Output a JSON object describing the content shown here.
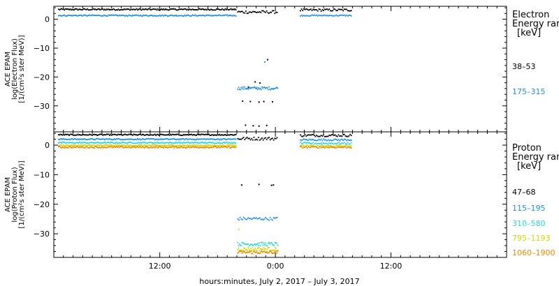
{
  "chart_data": [
    {
      "type": "scatter",
      "panel": "electron",
      "ylabel_lines": [
        "ACE EPAM",
        "log(Electron Flux)",
        "[1/(cm²s ster MeV)]"
      ],
      "ylim": [
        -39,
        4.5
      ],
      "yticks": [
        0,
        -10,
        -20,
        -30
      ],
      "ytick_labels": [
        "0",
        "−10",
        "−20",
        "−30"
      ],
      "legend": {
        "title_lines": [
          "Electron",
          "Energy ran",
          "[keV]"
        ],
        "entries": [
          {
            "label": "38–53",
            "color": "#000000"
          },
          {
            "label": "175–315",
            "color": "#1e90e8"
          }
        ]
      },
      "series": [
        {
          "name": "38–53",
          "color": "#000000",
          "segments": [
            {
              "x_range": [
                1.5,
                20.0
              ],
              "y": 3.4,
              "jitter": 0.25,
              "step": 0.1
            },
            {
              "x_range": [
                20.1,
                24.25
              ],
              "y": 2.5,
              "jitter": 0.5,
              "step": 0.12
            },
            {
              "x_range": [
                26.6,
                32.0
              ],
              "y": 3.2,
              "jitter": 0.4,
              "step": 0.12
            }
          ],
          "points": [
            [
              21.2,
              -23.5
            ],
            [
              22.0,
              -24.0
            ],
            [
              23.2,
              -14.0
            ],
            [
              21.9,
              -21.7
            ],
            [
              22.4,
              -22.1
            ],
            [
              20.6,
              -28.4
            ],
            [
              21.4,
              -28.5
            ],
            [
              22.3,
              -28.7
            ],
            [
              22.8,
              -28.5
            ],
            [
              23.7,
              -28.6
            ],
            [
              20.9,
              -36.7
            ],
            [
              21.7,
              -36.9
            ],
            [
              22.3,
              -37.0
            ],
            [
              23.1,
              -36.8
            ]
          ]
        },
        {
          "name": "175–315",
          "color": "#1e90e8",
          "segments": [
            {
              "x_range": [
                1.5,
                20.0
              ],
              "y": 1.3,
              "jitter": 0.2,
              "step": 0.1
            },
            {
              "x_range": [
                20.1,
                24.25
              ],
              "y": -23.9,
              "jitter": 0.5,
              "step": 0.09
            },
            {
              "x_range": [
                26.6,
                32.0
              ],
              "y": 1.3,
              "jitter": 0.2,
              "step": 0.12
            }
          ],
          "points": [
            [
              22.9,
              -14.8
            ]
          ]
        }
      ]
    },
    {
      "type": "scatter",
      "panel": "proton",
      "ylabel_lines": [
        "ACE EPAM",
        "log(Proton Flux)",
        "[1/(cm²s ster MeV)]"
      ],
      "ylim": [
        -38,
        4.5
      ],
      "yticks": [
        0,
        -10,
        -20,
        -30
      ],
      "ytick_labels": [
        "0",
        "−10",
        "−20",
        "−30"
      ],
      "legend": {
        "title_lines": [
          "Proton",
          "Energy ran",
          "[keV]"
        ],
        "entries": [
          {
            "label": "47–68",
            "color": "#000000"
          },
          {
            "label": "115–195",
            "color": "#1e90e8"
          },
          {
            "label": "310–580",
            "color": "#2cd6d6"
          },
          {
            "label": "795–1193",
            "color": "#d6d600"
          },
          {
            "label": "1060–1900",
            "color": "#e88a00"
          }
        ]
      },
      "series": [
        {
          "name": "47–68",
          "color": "#000000",
          "segments": [
            {
              "x_range": [
                1.5,
                20.0
              ],
              "y": 3.5,
              "jitter": 0.2,
              "step": 0.1
            },
            {
              "x_range": [
                20.1,
                24.25
              ],
              "y": 2.2,
              "jitter": 0.5,
              "step": 0.12
            },
            {
              "x_range": [
                26.6,
                32.0
              ],
              "y": 3.3,
              "jitter": 0.4,
              "step": 0.12
            }
          ],
          "points": [
            [
              20.5,
              -13.5
            ],
            [
              22.3,
              -13.3
            ],
            [
              23.6,
              -13.6
            ],
            [
              23.8,
              -13.5
            ]
          ]
        },
        {
          "name": "115–195",
          "color": "#1e90e8",
          "segments": [
            {
              "x_range": [
                1.5,
                20.0
              ],
              "y": 2.0,
              "jitter": 0.2,
              "step": 0.1
            },
            {
              "x_range": [
                20.1,
                24.25
              ],
              "y": -24.9,
              "jitter": 0.5,
              "step": 0.12
            },
            {
              "x_range": [
                26.6,
                32.0
              ],
              "y": 1.8,
              "jitter": 0.3,
              "step": 0.12
            }
          ],
          "points": []
        },
        {
          "name": "310–580",
          "color": "#2cd6d6",
          "segments": [
            {
              "x_range": [
                1.5,
                20.0
              ],
              "y": 0.8,
              "jitter": 0.2,
              "step": 0.1
            },
            {
              "x_range": [
                20.1,
                24.25
              ],
              "y": -33.5,
              "jitter": 0.6,
              "step": 0.09
            },
            {
              "x_range": [
                26.6,
                32.0
              ],
              "y": 0.6,
              "jitter": 0.3,
              "step": 0.12
            }
          ],
          "points": []
        },
        {
          "name": "795–1193",
          "color": "#d6d600",
          "segments": [
            {
              "x_range": [
                1.5,
                20.0
              ],
              "y": -0.1,
              "jitter": 0.2,
              "step": 0.1
            },
            {
              "x_range": [
                20.1,
                24.25
              ],
              "y": -35.2,
              "jitter": 0.6,
              "step": 0.09
            },
            {
              "x_range": [
                26.6,
                32.0
              ],
              "y": -0.3,
              "jitter": 0.3,
              "step": 0.12
            }
          ],
          "points": [
            [
              20.2,
              -28.5
            ]
          ]
        },
        {
          "name": "1060–1900",
          "color": "#e88a00",
          "segments": [
            {
              "x_range": [
                1.5,
                20.0
              ],
              "y": -0.7,
              "jitter": 0.25,
              "step": 0.1
            },
            {
              "x_range": [
                20.1,
                24.25
              ],
              "y": -36.3,
              "jitter": 0.5,
              "step": 0.09
            },
            {
              "x_range": [
                26.6,
                32.0
              ],
              "y": -0.7,
              "jitter": 0.3,
              "step": 0.12
            }
          ],
          "points": []
        }
      ]
    }
  ],
  "x_axis": {
    "xlim": [
      1.0,
      48.0
    ],
    "unit": "hours since 2017-07-02 00:00 UT",
    "major_ticks": [
      12,
      24,
      36
    ],
    "major_tick_labels": [
      "12:00",
      "0:00",
      "12:00"
    ],
    "minor_step": 1,
    "label": "hours:minutes,  July  2, 2017 – July  3, 2017"
  }
}
